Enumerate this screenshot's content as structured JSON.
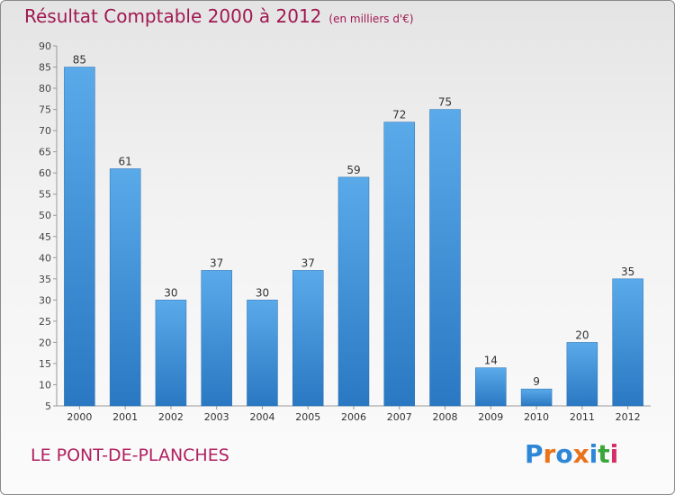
{
  "chart_data": {
    "type": "bar",
    "title": "Résultat Comptable 2000 à 2012",
    "subtitle": "(en milliers d'€)",
    "categories": [
      "2000",
      "2001",
      "2002",
      "2003",
      "2004",
      "2005",
      "2006",
      "2007",
      "2008",
      "2009",
      "2010",
      "2011",
      "2012"
    ],
    "values": [
      85,
      61,
      30,
      37,
      30,
      37,
      59,
      72,
      75,
      14,
      9,
      20,
      35
    ],
    "ylim": [
      5,
      90
    ],
    "yticks": [
      5,
      10,
      15,
      20,
      25,
      30,
      35,
      40,
      45,
      50,
      55,
      60,
      65,
      70,
      75,
      80,
      85,
      90
    ],
    "xlabel": "",
    "ylabel": "",
    "grid": false,
    "bar_color": "#4a9be0"
  },
  "footer": {
    "commune": "LE PONT-DE-PLANCHES",
    "logo_text": "Proxiti",
    "logo_colors": [
      "#2e86d6",
      "#e8731b",
      "#2e86d6",
      "#e8731b",
      "#2e86d6",
      "#3aa63a",
      "#d3306b"
    ]
  }
}
